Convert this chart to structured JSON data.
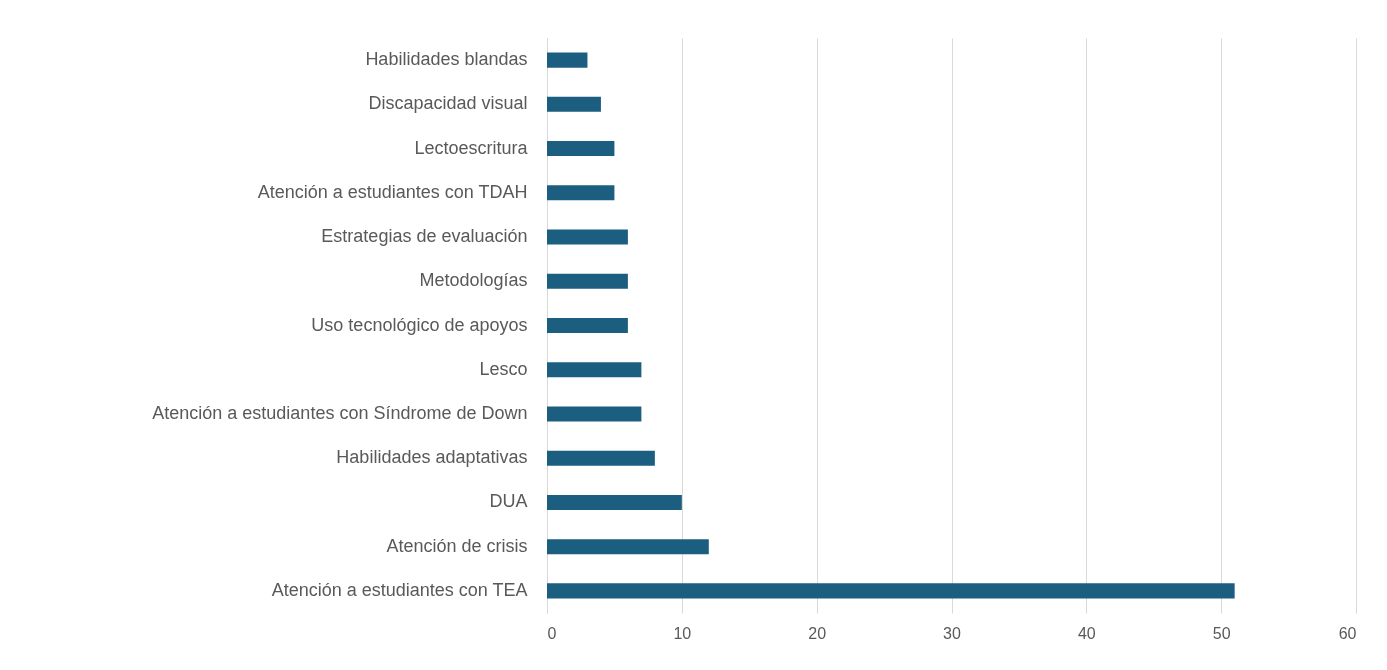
{
  "chart_data": {
    "type": "bar",
    "orientation": "horizontal",
    "categories": [
      "Habilidades blandas",
      "Discapacidad visual",
      "Lectoescritura",
      "Atención a estudiantes con TDAH",
      "Estrategias de evaluación",
      "Metodologías",
      "Uso tecnológico de apoyos",
      "Lesco",
      "Atención a estudiantes con Síndrome de Down",
      "Habilidades adaptativas",
      "DUA",
      "Atención de crisis",
      "Atención a estudiantes con TEA"
    ],
    "values": [
      3,
      4,
      5,
      5,
      6,
      6,
      6,
      7,
      7,
      8,
      10,
      12,
      51
    ],
    "color": "#1b5e80",
    "xlim": [
      0,
      60
    ],
    "xticks": [
      0,
      10,
      20,
      30,
      40,
      50,
      60
    ],
    "grid": "x"
  }
}
